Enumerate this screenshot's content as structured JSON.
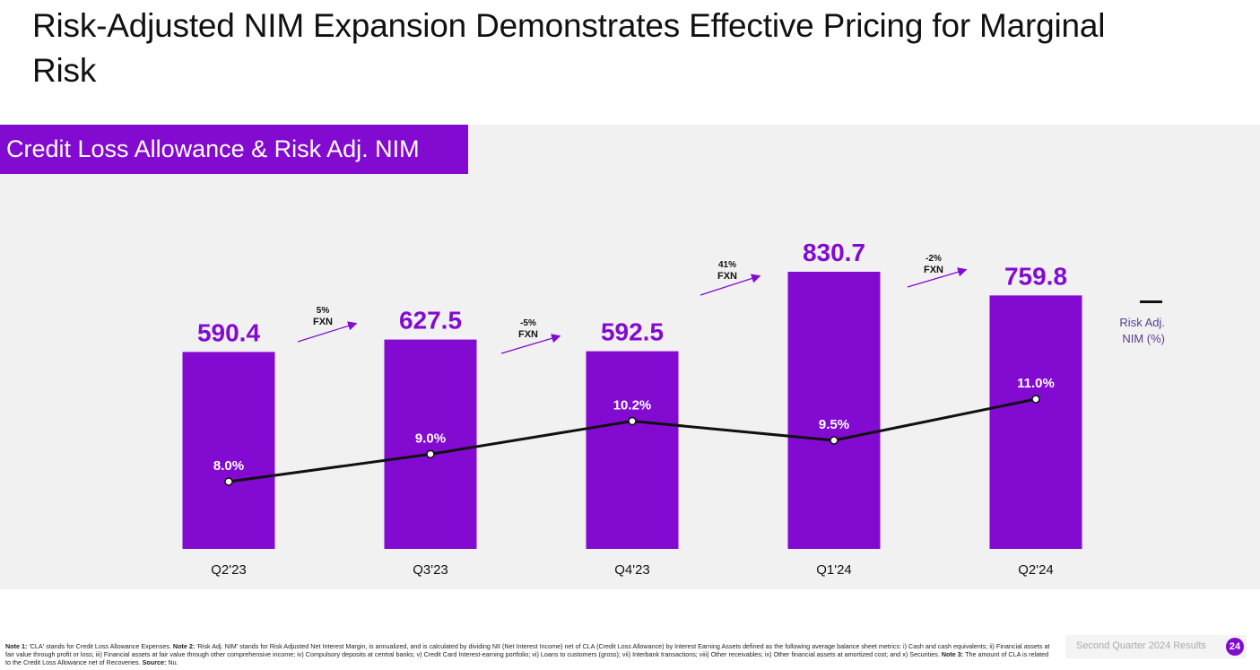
{
  "page": {
    "title": "Risk-Adjusted NIM Expansion Demonstrates Effective Pricing for Marginal Risk",
    "panel_label": "Credit Loss Allowance & Risk Adj. NIM"
  },
  "colors": {
    "brand_purple": "#820ad1",
    "line": "#111111",
    "panel_bg": "#f2f1f2"
  },
  "legend": {
    "line_label": "Risk Adj. NIM (%)"
  },
  "chart_data": {
    "type": "bar+line",
    "title": "Credit Loss Allowance & Risk Adj. NIM",
    "categories": [
      "Q2'23",
      "Q3'23",
      "Q4'23",
      "Q1'24",
      "Q2'24"
    ],
    "series": [
      {
        "name": "Credit Loss Allowance",
        "type": "bar",
        "values": [
          590.4,
          627.5,
          592.5,
          830.7,
          759.8
        ]
      },
      {
        "name": "Risk Adj. NIM (%)",
        "type": "line",
        "values": [
          8.0,
          9.0,
          10.2,
          9.5,
          11.0
        ]
      }
    ],
    "bar_labels": [
      "590.4",
      "627.5",
      "592.5",
      "830.7",
      "759.8"
    ],
    "line_labels": [
      "8.0%",
      "9.0%",
      "10.2%",
      "9.5%",
      "11.0%"
    ],
    "growth_annotations": [
      {
        "between": [
          "Q2'23",
          "Q3'23"
        ],
        "pct": "5%",
        "label": "FXN"
      },
      {
        "between": [
          "Q3'23",
          "Q4'23"
        ],
        "pct": "-5%",
        "label": "FXN"
      },
      {
        "between": [
          "Q4'23",
          "Q1'24"
        ],
        "pct": "41%",
        "label": "FXN"
      },
      {
        "between": [
          "Q1'24",
          "Q2'24"
        ],
        "pct": "-2%",
        "label": "FXN"
      }
    ],
    "legend": [
      "Risk Adj. NIM (%)"
    ],
    "legend_position": "right",
    "grid": false,
    "xlabel": "",
    "ylabel": ""
  },
  "footer": {
    "notes_html_parts": [
      {
        "bold": "Note 1:",
        "text": " 'CLA' stands for Credit Loss Allowance Expenses. "
      },
      {
        "bold": "Note 2:",
        "text": " 'Risk Adj. NIM' stands for Risk Adjusted Net Interest Margin, is annualized, and is calculated by dividing NII (Net Interest Income) net of CLA (Credit Loss Allowance) by Interest Earning Assets defined as the following average balance sheet metrics: i) Cash and cash equivalents; ii) Financial assets at fair value through profit or loss; iii) Financial assets at fair value through other comprehensive income; iv) Compulsory deposits at central banks; v) Credit Card Interest-earning portfolio; vi) Loans to customers (gross); vii) Interbank transactions; viii) Other receivables; ix) Other financial assets at amortized cost; and x) Securities. "
      },
      {
        "bold": "Note 3:",
        "text": " The amount of CLA is related to the Credit Loss Allowance net of Recoveries. "
      },
      {
        "bold": "Source:",
        "text": " Nu."
      }
    ],
    "report_label": "Second Quarter 2024 Results",
    "page_number": "24"
  }
}
